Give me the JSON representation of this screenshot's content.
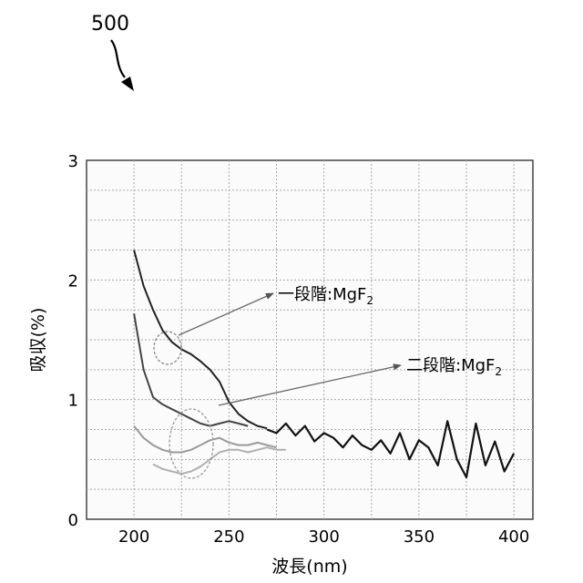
{
  "figure_label": "500",
  "chart_data": {
    "type": "line",
    "title": "",
    "xlabel": "波長(nm)",
    "ylabel": "吸収(%)",
    "xlim": [
      175,
      410
    ],
    "ylim": [
      0,
      3
    ],
    "xticks": [
      200,
      250,
      300,
      350,
      400
    ],
    "yticks": [
      0,
      1,
      2,
      3
    ],
    "grid": true,
    "annotations": [
      {
        "text": "一段階:MgF",
        "subscript": "2"
      },
      {
        "text": "二段階:MgF",
        "subscript": "2"
      }
    ],
    "series": [
      {
        "color": "#222222",
        "x": [
          200,
          205,
          210,
          215,
          220,
          225,
          230,
          235,
          240,
          245,
          250,
          255,
          260,
          265,
          270
        ],
        "y": [
          2.25,
          1.95,
          1.75,
          1.58,
          1.48,
          1.42,
          1.38,
          1.32,
          1.25,
          1.15,
          0.98,
          0.88,
          0.82,
          0.78,
          0.76
        ]
      },
      {
        "color": "#444444",
        "x": [
          200,
          205,
          210,
          215,
          220,
          225,
          230,
          235,
          240,
          245,
          250,
          255,
          260
        ],
        "y": [
          1.72,
          1.25,
          1.02,
          0.96,
          0.92,
          0.88,
          0.84,
          0.8,
          0.78,
          0.8,
          0.82,
          0.8,
          0.78
        ]
      },
      {
        "color": "#9a9a9a",
        "x": [
          200,
          205,
          210,
          215,
          220,
          225,
          230,
          235,
          240,
          245,
          250,
          255,
          260,
          265,
          270,
          275
        ],
        "y": [
          0.78,
          0.68,
          0.62,
          0.58,
          0.56,
          0.56,
          0.58,
          0.62,
          0.66,
          0.68,
          0.64,
          0.62,
          0.62,
          0.64,
          0.62,
          0.6
        ]
      },
      {
        "color": "#b0b0b0",
        "x": [
          210,
          215,
          220,
          225,
          230,
          235,
          240,
          245,
          250,
          255,
          260,
          265,
          270,
          275,
          280
        ],
        "y": [
          0.46,
          0.42,
          0.4,
          0.38,
          0.4,
          0.44,
          0.5,
          0.56,
          0.58,
          0.58,
          0.56,
          0.58,
          0.6,
          0.58,
          0.58
        ]
      },
      {
        "color": "#111111",
        "x": [
          270,
          275,
          280,
          285,
          290,
          295,
          300,
          305,
          310,
          315,
          320,
          325,
          330,
          335,
          340,
          345,
          350,
          355,
          360,
          365,
          370,
          375,
          380,
          385,
          390,
          395,
          400
        ],
        "y": [
          0.75,
          0.72,
          0.8,
          0.7,
          0.78,
          0.65,
          0.72,
          0.68,
          0.6,
          0.7,
          0.62,
          0.58,
          0.66,
          0.55,
          0.72,
          0.5,
          0.66,
          0.6,
          0.45,
          0.82,
          0.5,
          0.35,
          0.8,
          0.45,
          0.65,
          0.4,
          0.55
        ]
      }
    ]
  }
}
